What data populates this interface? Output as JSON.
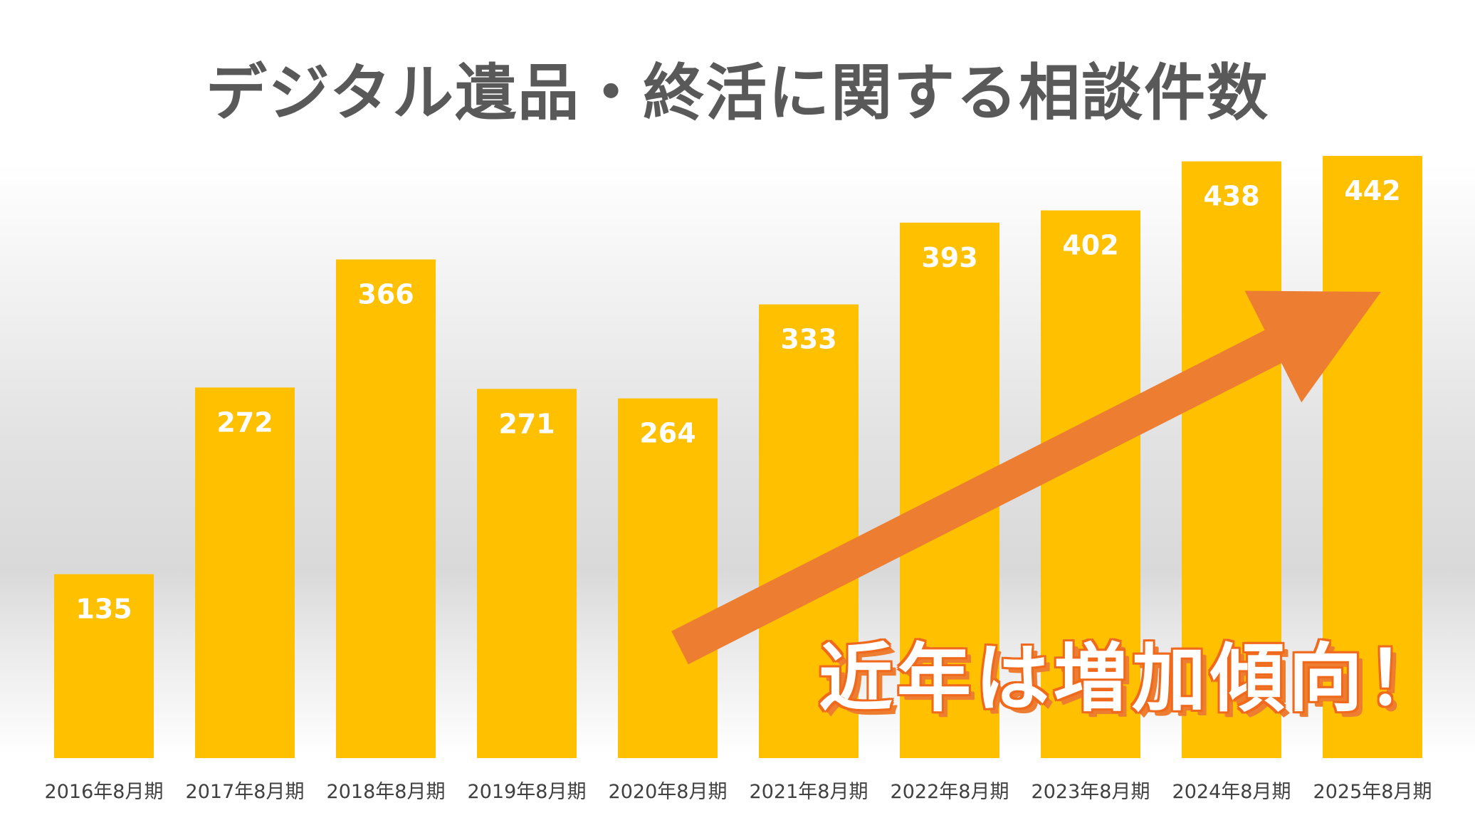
{
  "title": "デジタル遺品・終活に関する相談件数",
  "callout": "近年は増加傾向！",
  "colors": {
    "bar": "#FFC000",
    "arrow": "#ED7D31",
    "title": "#595959",
    "bar_label": "#FFFFFF"
  },
  "chart_data": {
    "type": "bar",
    "title": "デジタル遺品・終活に関する相談件数",
    "categories": [
      "2016年8月期",
      "2017年8月期",
      "2018年8月期",
      "2019年8月期",
      "2020年8月期",
      "2021年8月期",
      "2022年8月期",
      "2023年8月期",
      "2024年8月期",
      "2025年8月期"
    ],
    "values": [
      135,
      272,
      366,
      271,
      264,
      333,
      393,
      402,
      438,
      442
    ],
    "data_labels": [
      "135",
      "272",
      "366",
      "271",
      "264",
      "333",
      "393",
      "402",
      "438",
      "442"
    ],
    "xlabel": "",
    "ylabel": "",
    "ylim": [
      0,
      450
    ],
    "grid": false,
    "legend": "none",
    "annotation": "近年は増加傾向！"
  }
}
